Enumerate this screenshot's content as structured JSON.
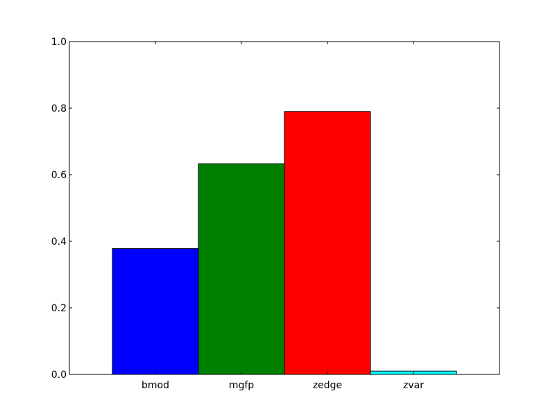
{
  "chart_data": {
    "type": "bar",
    "title": "",
    "xlabel": "",
    "ylabel": "",
    "ylim": [
      0,
      1.0
    ],
    "yticks": [
      0.0,
      0.2,
      0.4,
      0.6,
      0.8,
      1.0
    ],
    "ytick_labels": [
      "0.0",
      "0.2",
      "0.4",
      "0.6",
      "0.8",
      "1.0"
    ],
    "categories": [
      "bmod",
      "mgfp",
      "zedge",
      "zvar"
    ],
    "values": [
      0.378,
      0.633,
      0.79,
      0.01
    ],
    "colors": [
      "#0000ff",
      "#008000",
      "#ff0000",
      "#00ffff"
    ],
    "grid": false,
    "legend": "none"
  }
}
